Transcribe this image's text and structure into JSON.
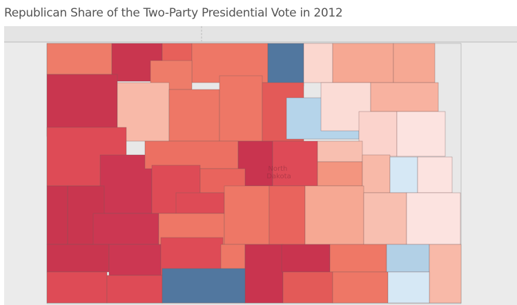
{
  "title": "Republican Share of the Two-Party Presidential Vote in 2012",
  "map": {
    "state_label_line1": "North",
    "state_label_line2": "Dakota",
    "color_scale": {
      "strong_republican": "#c9364f",
      "republican": "#de4b56",
      "lean_republican": "#ee7766",
      "slight_republican": "#f6a893",
      "near_even_republican": "#fce3e0",
      "democratic": "#51779f",
      "lean_democratic": "#b3d3e8"
    },
    "county_fills": [
      "#ee7c69",
      "#c9364f",
      "#e7605a",
      "#ee7766",
      "#51779f",
      "#fbd7cf",
      "#f6a893",
      "#f6a893",
      "#c9364f",
      "#ee7c69",
      "#f8b9a8",
      "#ee7766",
      "#ee7766",
      "#e35a58",
      "#b5d4ea",
      "#fbdcd6",
      "#f8b2a0",
      "#fbd3cc",
      "#fce3e0",
      "#de4b56",
      "#cc3752",
      "#ec7062",
      "#c9344f",
      "#de4a57",
      "#f8bfb0",
      "#f3957f",
      "#f8b9a8",
      "#d6e8f5",
      "#fce3e0",
      "#de4b56",
      "#e9645d",
      "#de4b56",
      "#c9364f",
      "#c9364f",
      "#cc3752",
      "#ee7766",
      "#ee7766",
      "#e9645d",
      "#f6a893",
      "#f8bfb0",
      "#fce3e0",
      "#c9364f",
      "#cc3752",
      "#de4b56",
      "#ee7766",
      "#c9344f",
      "#c9344f",
      "#ef7866",
      "#b2d0e6",
      "#f8b9a8",
      "#de4b56",
      "#de4b56",
      "#51779f",
      "#e35a58",
      "#ee7766",
      "#d6e8f5"
    ]
  }
}
